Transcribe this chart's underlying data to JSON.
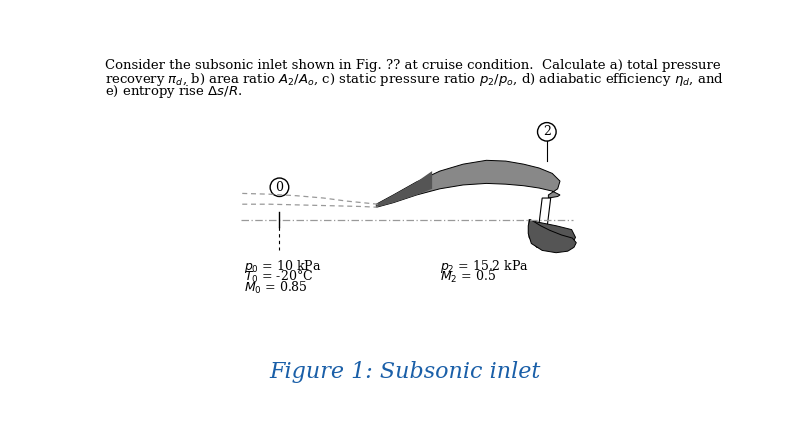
{
  "title": "Figure 1: Subsonic inlet",
  "header_line1": "Consider the subsonic inlet shown in Fig. ?? at cruise condition.  Calculate a) total pressure",
  "header_line2": "recovery $\\pi_d$, b) area ratio $A_2/A_o$, c) static pressure ratio $p_2/p_o$, d) adiabatic efficiency $\\eta_d$, and",
  "header_line3": "e) entropy rise $\\Delta s/R$.",
  "label_0": "0",
  "label_2": "2",
  "left_ann": [
    "$p_0$ = 10 kPa",
    "$T_0$ = -20°C",
    "$M_0$ = 0.85"
  ],
  "right_ann": [
    "$p_2$ = 15.2 kPa",
    "$M_2$ = 0.5"
  ],
  "bg_color": "#ffffff",
  "gray_med": "#888888",
  "gray_dark": "#555555",
  "gray_light": "#aaaaaa",
  "dash_color": "#999999",
  "title_color": "#1a5fa8"
}
